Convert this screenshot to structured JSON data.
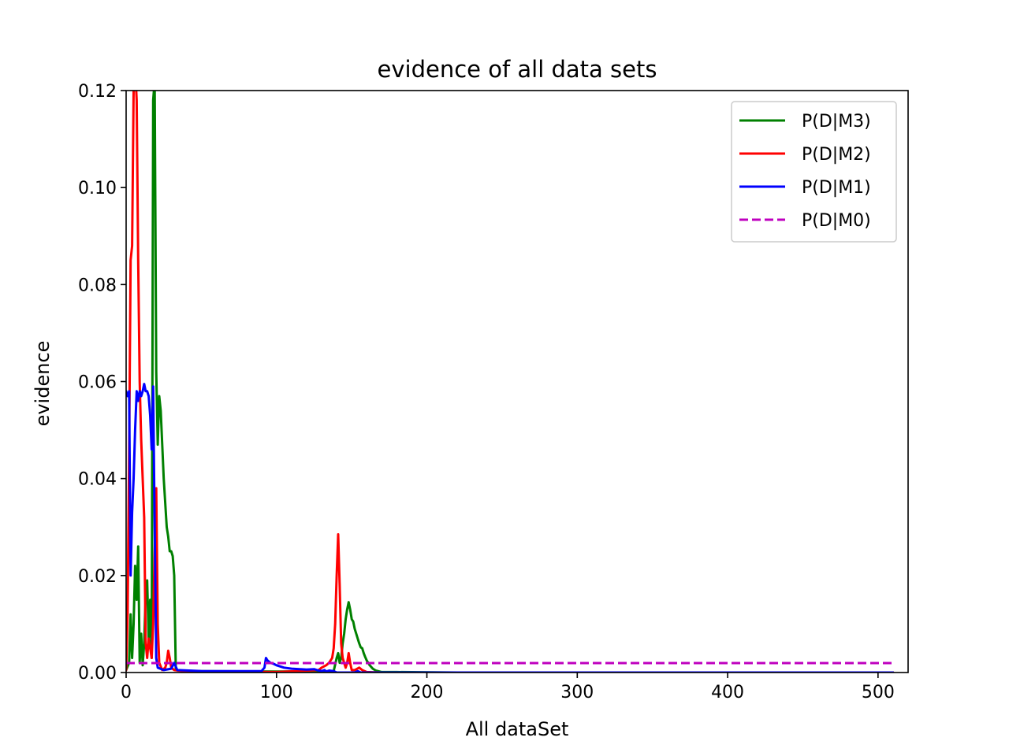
{
  "chart_data": {
    "type": "line",
    "title": "evidence of all data sets",
    "xlabel": "All dataSet",
    "ylabel": "evidence",
    "xlim": [
      0,
      520
    ],
    "ylim": [
      0,
      0.12
    ],
    "xticks": [
      0,
      100,
      200,
      300,
      400,
      500
    ],
    "xtick_labels": [
      "0",
      "100",
      "200",
      "300",
      "400",
      "500"
    ],
    "yticks": [
      0,
      0.02,
      0.04,
      0.06,
      0.08,
      0.1,
      0.12
    ],
    "ytick_labels": [
      "0.00",
      "0.02",
      "0.04",
      "0.06",
      "0.08",
      "0.10",
      "0.12"
    ],
    "grid": false,
    "legend_position": "upper right",
    "series": [
      {
        "name": "P(D|M3)",
        "color": "#008000",
        "style": "solid",
        "points": [
          [
            0,
            0.0005
          ],
          [
            2,
            0.002
          ],
          [
            3,
            0.012
          ],
          [
            4,
            0.003
          ],
          [
            5,
            0.01
          ],
          [
            6,
            0.022
          ],
          [
            7,
            0.015
          ],
          [
            8,
            0.026
          ],
          [
            9,
            0.002
          ],
          [
            10,
            0.008
          ],
          [
            11,
            0.0015
          ],
          [
            12,
            0.006
          ],
          [
            13,
            0.016
          ],
          [
            14,
            0.019
          ],
          [
            15,
            0.007
          ],
          [
            16,
            0.015
          ],
          [
            17,
            0.003
          ],
          [
            18,
            0.118
          ],
          [
            19,
            0.122
          ],
          [
            20,
            0.062
          ],
          [
            21,
            0.047
          ],
          [
            22,
            0.057
          ],
          [
            23,
            0.054
          ],
          [
            24,
            0.047
          ],
          [
            25,
            0.04
          ],
          [
            26,
            0.035
          ],
          [
            27,
            0.03
          ],
          [
            28,
            0.028
          ],
          [
            29,
            0.025
          ],
          [
            30,
            0.025
          ],
          [
            31,
            0.024
          ],
          [
            32,
            0.02
          ],
          [
            33,
            0.0005
          ],
          [
            40,
            0.0003
          ],
          [
            100,
            0.0002
          ],
          [
            138,
            0.0003
          ],
          [
            140,
            0.003
          ],
          [
            141,
            0.004
          ],
          [
            142,
            0.002
          ],
          [
            143,
            0.003
          ],
          [
            144,
            0.006
          ],
          [
            145,
            0.008
          ],
          [
            146,
            0.011
          ],
          [
            147,
            0.013
          ],
          [
            148,
            0.0145
          ],
          [
            149,
            0.013
          ],
          [
            150,
            0.011
          ],
          [
            151,
            0.0105
          ],
          [
            152,
            0.009
          ],
          [
            153,
            0.008
          ],
          [
            154,
            0.007
          ],
          [
            155,
            0.006
          ],
          [
            156,
            0.0052
          ],
          [
            157,
            0.005
          ],
          [
            158,
            0.004
          ],
          [
            159,
            0.0032
          ],
          [
            160,
            0.0025
          ],
          [
            162,
            0.0015
          ],
          [
            164,
            0.0008
          ],
          [
            166,
            0.0004
          ],
          [
            170,
            0.0001
          ],
          [
            180,
            0.0001
          ],
          [
            220,
            0.0
          ],
          [
            510,
            0.0
          ]
        ]
      },
      {
        "name": "P(D|M2)",
        "color": "#ff0000",
        "style": "solid",
        "points": [
          [
            0,
            0.0005
          ],
          [
            1,
            0.012
          ],
          [
            2,
            0.045
          ],
          [
            3,
            0.085
          ],
          [
            4,
            0.088
          ],
          [
            5,
            0.12
          ],
          [
            6,
            0.125
          ],
          [
            7,
            0.118
          ],
          [
            8,
            0.085
          ],
          [
            9,
            0.06
          ],
          [
            10,
            0.048
          ],
          [
            11,
            0.04
          ],
          [
            12,
            0.032
          ],
          [
            13,
            0.006
          ],
          [
            14,
            0.003
          ],
          [
            15,
            0.007
          ],
          [
            16,
            0.005
          ],
          [
            17,
            0.003
          ],
          [
            18,
            0.01
          ],
          [
            19,
            0.025
          ],
          [
            20,
            0.038
          ],
          [
            21,
            0.01
          ],
          [
            22,
            0.002
          ],
          [
            24,
            0.0005
          ],
          [
            26,
            0.001
          ],
          [
            27,
            0.002
          ],
          [
            28,
            0.0045
          ],
          [
            29,
            0.003
          ],
          [
            30,
            0.001
          ],
          [
            32,
            0.0005
          ],
          [
            40,
            0.0002
          ],
          [
            100,
            0.0001
          ],
          [
            128,
            0.0005
          ],
          [
            130,
            0.001
          ],
          [
            133,
            0.0015
          ],
          [
            135,
            0.002
          ],
          [
            137,
            0.003
          ],
          [
            138,
            0.005
          ],
          [
            139,
            0.01
          ],
          [
            140,
            0.02
          ],
          [
            141,
            0.0285
          ],
          [
            142,
            0.018
          ],
          [
            143,
            0.006
          ],
          [
            144,
            0.003
          ],
          [
            145,
            0.002
          ],
          [
            146,
            0.001
          ],
          [
            147,
            0.002
          ],
          [
            148,
            0.004
          ],
          [
            149,
            0.002
          ],
          [
            150,
            0.0005
          ],
          [
            152,
            0.0005
          ],
          [
            155,
            0.001
          ],
          [
            157,
            0.0005
          ],
          [
            160,
            0.0001
          ],
          [
            170,
            0.0
          ],
          [
            510,
            0.0
          ]
        ]
      },
      {
        "name": "P(D|M1)",
        "color": "#0000ff",
        "style": "solid",
        "points": [
          [
            0,
            0.058
          ],
          [
            1,
            0.057
          ],
          [
            2,
            0.058
          ],
          [
            3,
            0.02
          ],
          [
            4,
            0.033
          ],
          [
            5,
            0.04
          ],
          [
            6,
            0.05
          ],
          [
            7,
            0.058
          ],
          [
            8,
            0.056
          ],
          [
            9,
            0.058
          ],
          [
            10,
            0.057
          ],
          [
            11,
            0.058
          ],
          [
            12,
            0.0595
          ],
          [
            13,
            0.058
          ],
          [
            14,
            0.058
          ],
          [
            15,
            0.057
          ],
          [
            16,
            0.053
          ],
          [
            17,
            0.046
          ],
          [
            18,
            0.059
          ],
          [
            19,
            0.03
          ],
          [
            20,
            0.003
          ],
          [
            21,
            0.001
          ],
          [
            25,
            0.0005
          ],
          [
            30,
            0.0008
          ],
          [
            32,
            0.002
          ],
          [
            34,
            0.0005
          ],
          [
            50,
            0.0003
          ],
          [
            90,
            0.0003
          ],
          [
            92,
            0.001
          ],
          [
            93,
            0.003
          ],
          [
            94,
            0.0025
          ],
          [
            96,
            0.002
          ],
          [
            98,
            0.0018
          ],
          [
            100,
            0.0015
          ],
          [
            105,
            0.001
          ],
          [
            110,
            0.0008
          ],
          [
            120,
            0.0006
          ],
          [
            125,
            0.0007
          ],
          [
            127,
            0.0005
          ],
          [
            130,
            0.0003
          ],
          [
            132,
            0.0005
          ],
          [
            133,
            0.0002
          ],
          [
            135,
            0.0004
          ],
          [
            138,
            0.0003
          ],
          [
            140,
            0.0
          ],
          [
            152,
            0.0
          ],
          [
            154,
            0.0003
          ],
          [
            156,
            0.0
          ],
          [
            510,
            0.0
          ]
        ]
      },
      {
        "name": "P(D|M0)",
        "color": "#bf00bf",
        "style": "dashed",
        "points": [
          [
            0,
            0.00195
          ],
          [
            510,
            0.00195
          ]
        ]
      }
    ]
  }
}
